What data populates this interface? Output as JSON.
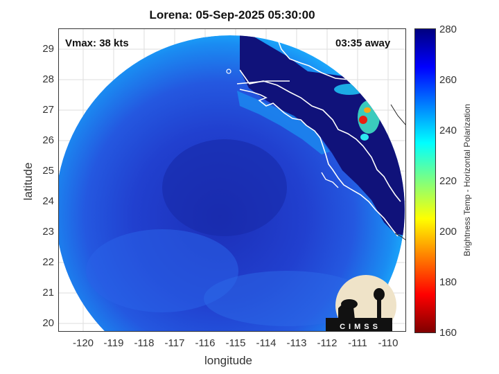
{
  "title": "Lorena: 05-Sep-2025 05:30:00",
  "vmax_label": "Vmax: 38 kts",
  "time_label": "03:35 away",
  "axes": {
    "xlabel": "longitude",
    "ylabel": "latitude",
    "xticks": [
      "-120",
      "-119",
      "-118",
      "-117",
      "-116",
      "-115",
      "-114",
      "-113",
      "-112",
      "-111",
      "-110"
    ],
    "yticks": [
      "29",
      "28",
      "27",
      "26",
      "25",
      "24",
      "23",
      "22",
      "21",
      "20"
    ]
  },
  "colorbar": {
    "label": "Brightness Temp - Horizontal Polarization",
    "ticks": [
      "280",
      "260",
      "240",
      "220",
      "200",
      "180",
      "160"
    ],
    "range": [
      160,
      280
    ]
  },
  "logo": {
    "text": "CIMSS"
  },
  "colors": {
    "ocean_cold": "#2a54e6",
    "ocean_deep": "#1c33c2",
    "land": "#10127a",
    "edge": "#19b7ff",
    "warm_spot": "#e81e10"
  }
}
